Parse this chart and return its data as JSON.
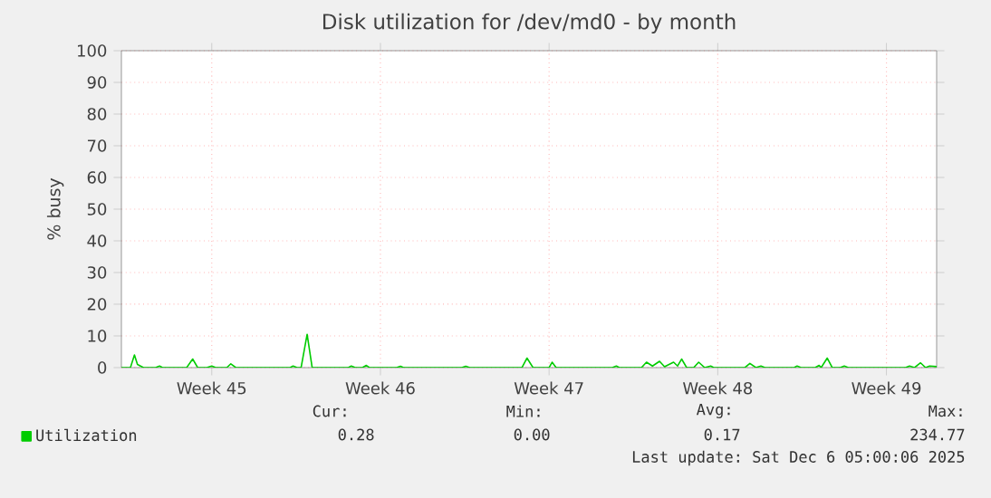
{
  "chart_data": {
    "type": "line",
    "title": "Disk utilization for /dev/md0 - by month",
    "ylabel": "% busy",
    "x": [
      "2025-11-02T09:00",
      "2025-11-02T18:00",
      "2025-11-02T22:00",
      "2025-11-03T01:00",
      "2025-11-03T07:00",
      "2025-11-03T19:00",
      "2025-11-03T23:00",
      "2025-11-04T02:00",
      "2025-11-05T02:00",
      "2025-11-05T08:00",
      "2025-11-05T13:00",
      "2025-11-05T22:00",
      "2025-11-06T03:00",
      "2025-11-06T07:00",
      "2025-11-06T18:00",
      "2025-11-06T22:00",
      "2025-11-07T03:00",
      "2025-11-09T09:00",
      "2025-11-09T12:00",
      "2025-11-09T16:00",
      "2025-11-09T20:00",
      "2025-11-10T02:00",
      "2025-11-10T07:00",
      "2025-11-11T19:00",
      "2025-11-11T22:00",
      "2025-11-12T02:00",
      "2025-11-12T09:00",
      "2025-11-12T13:00",
      "2025-11-12T16:00",
      "2025-11-13T19:00",
      "2025-11-13T23:00",
      "2025-11-14T02:00",
      "2025-11-16T12:00",
      "2025-11-16T16:00",
      "2025-11-16T20:00",
      "2025-11-19T00:00",
      "2025-11-19T05:00",
      "2025-11-19T11:00",
      "2025-11-20T03:00",
      "2025-11-20T06:00",
      "2025-11-20T10:00",
      "2025-11-22T18:00",
      "2025-11-22T22:00",
      "2025-11-23T01:00",
      "2025-11-23T23:00",
      "2025-11-24T04:00",
      "2025-11-24T10:00",
      "2025-11-24T17:00",
      "2025-11-24T22:00",
      "2025-11-25T07:00",
      "2025-11-25T11:00",
      "2025-11-25T15:00",
      "2025-11-25T20:00",
      "2025-11-26T03:00",
      "2025-11-26T08:00",
      "2025-11-26T14:00",
      "2025-11-26T20:00",
      "2025-11-26T23:00",
      "2025-11-28T06:00",
      "2025-11-28T11:00",
      "2025-11-28T17:00",
      "2025-11-28T22:00",
      "2025-11-29T02:00",
      "2025-11-30T07:00",
      "2025-11-30T10:00",
      "2025-11-30T14:00",
      "2025-12-01T04:00",
      "2025-12-01T08:00",
      "2025-12-01T10:00",
      "2025-12-01T16:00",
      "2025-12-01T21:00",
      "2025-12-02T05:00",
      "2025-12-02T09:00",
      "2025-12-02T13:00",
      "2025-12-04T22:00",
      "2025-12-05T02:00",
      "2025-12-05T07:00",
      "2025-12-05T13:00",
      "2025-12-05T18:00",
      "2025-12-05T22:00",
      "2025-12-06T05:00"
    ],
    "series": [
      {
        "name": "Utilization",
        "color": "#00cc00",
        "values": [
          0,
          0,
          4,
          1,
          0,
          0,
          0.5,
          0,
          0,
          2.7,
          0,
          0,
          0.5,
          0,
          0,
          1.2,
          0,
          0,
          0.5,
          0,
          0,
          10.5,
          0,
          0,
          0.5,
          0,
          0,
          0.7,
          0,
          0,
          0.4,
          0,
          0,
          0.4,
          0,
          0,
          3,
          0,
          0,
          1.7,
          0,
          0,
          0.5,
          0,
          0,
          1.7,
          0.5,
          2,
          0.3,
          1.7,
          0.5,
          2.7,
          0,
          0,
          1.7,
          0,
          0.5,
          0,
          0,
          1.3,
          0,
          0.5,
          0,
          0,
          0.5,
          0,
          0,
          0.7,
          0,
          3,
          0,
          0,
          0.5,
          0,
          0,
          0.5,
          0,
          1.5,
          0,
          0.5,
          0.3
        ]
      }
    ],
    "xlim": [
      "2025-11-02T09:00",
      "2025-12-06T05:00"
    ],
    "xticks": [
      {
        "value": "2025-11-06T03:00",
        "label": "Week 45"
      },
      {
        "value": "2025-11-13T03:00",
        "label": "Week 46"
      },
      {
        "value": "2025-11-20T03:00",
        "label": "Week 47"
      },
      {
        "value": "2025-11-27T03:00",
        "label": "Week 48"
      },
      {
        "value": "2025-12-04T03:00",
        "label": "Week 49"
      }
    ],
    "ylim": [
      0,
      100
    ],
    "yticks": [
      0,
      10,
      20,
      30,
      40,
      50,
      60,
      70,
      80,
      90,
      100
    ],
    "grid": true,
    "legend": "bottom left",
    "annotations": [
      "Cur:",
      "Min:",
      "Avg:",
      "Max:",
      "0.28",
      "0.00",
      "0.17",
      "234.77",
      "Last update: Sat Dec 6 05:00:06 2025"
    ]
  }
}
